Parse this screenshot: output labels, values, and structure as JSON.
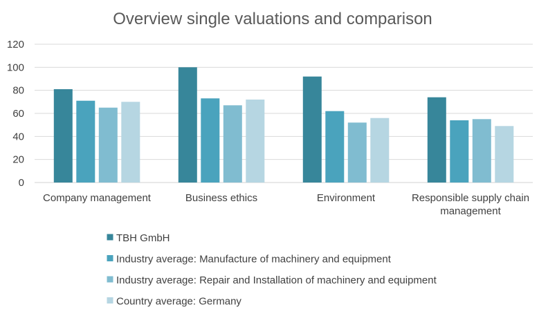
{
  "chart_data": {
    "type": "bar",
    "title": "Overview single valuations and comparison",
    "xlabel": "",
    "ylabel": "",
    "ylim": [
      0,
      120
    ],
    "yticks": [
      0,
      20,
      40,
      60,
      80,
      100,
      120
    ],
    "grid": true,
    "legend_position": "bottom",
    "categories": [
      [
        "Company management"
      ],
      [
        "Business ethics"
      ],
      [
        "Environment"
      ],
      [
        "Responsible supply chain",
        "management"
      ]
    ],
    "series": [
      {
        "name": "TBH GmbH",
        "color": "#37869a",
        "values": [
          81,
          100,
          92,
          74
        ]
      },
      {
        "name": "Industry average: Manufacture of machinery and equipment",
        "color": "#4aa3bd",
        "values": [
          71,
          73,
          62,
          54
        ]
      },
      {
        "name": "Industry average: Repair and Installation of machinery and equipment",
        "color": "#80bcd0",
        "values": [
          65,
          67,
          52,
          55
        ]
      },
      {
        "name": "Country average: Germany",
        "color": "#b6d6e2",
        "values": [
          70,
          72,
          56,
          49
        ]
      }
    ]
  }
}
